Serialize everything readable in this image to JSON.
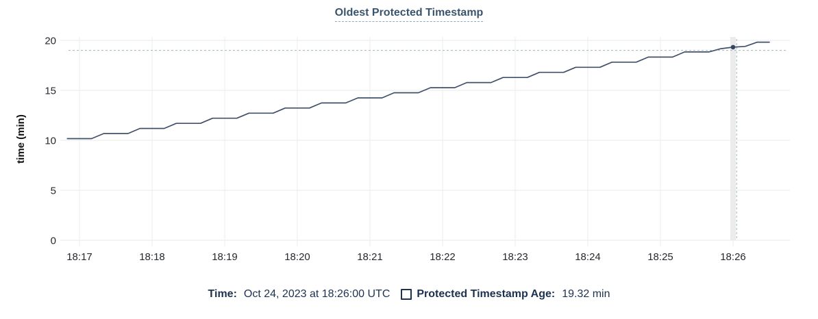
{
  "title": {
    "text": "Oldest Protected Timestamp"
  },
  "legend": {
    "time_label": "Time:",
    "time_value": "Oct 24, 2023 at 18:26:00 UTC",
    "series_label": "Protected Timestamp Age:",
    "series_value": "19.32 min"
  },
  "colors": {
    "title": "#3a546e",
    "title_underline": "#93a8bd",
    "legend_text": "#1c3150",
    "series_line": "#40506a",
    "hover_dot": "#35465e",
    "crosshair": "#9fb4bf",
    "gridline_h": "#e8e8e8",
    "gridline_v": "#eeeeee",
    "hover_band": "#ebebeb",
    "tick_text": "#26282d",
    "axis_title_text": "#111111"
  },
  "chart_data": {
    "type": "line",
    "title": "Oldest Protected Timestamp",
    "xlabel": "",
    "ylabel": "time (min)",
    "ylim": [
      0,
      20
    ],
    "y_ticks": [
      0,
      5,
      10,
      15,
      20
    ],
    "x_ticks": [
      "18:17",
      "18:18",
      "18:19",
      "18:20",
      "18:21",
      "18:22",
      "18:23",
      "18:24",
      "18:25",
      "18:26"
    ],
    "grid": true,
    "legend_position": "bottom",
    "series": [
      {
        "name": "Protected Timestamp Age",
        "unit": "min",
        "points": [
          {
            "t": "18:16:50",
            "v": 10.17
          },
          {
            "t": "18:17:00",
            "v": 10.17
          },
          {
            "t": "18:17:10",
            "v": 10.17
          },
          {
            "t": "18:17:20",
            "v": 10.68
          },
          {
            "t": "18:17:30",
            "v": 10.68
          },
          {
            "t": "18:17:40",
            "v": 10.68
          },
          {
            "t": "18:17:50",
            "v": 11.19
          },
          {
            "t": "18:18:00",
            "v": 11.19
          },
          {
            "t": "18:18:10",
            "v": 11.19
          },
          {
            "t": "18:18:20",
            "v": 11.7
          },
          {
            "t": "18:18:30",
            "v": 11.7
          },
          {
            "t": "18:18:40",
            "v": 11.7
          },
          {
            "t": "18:18:50",
            "v": 12.21
          },
          {
            "t": "18:19:00",
            "v": 12.21
          },
          {
            "t": "18:19:10",
            "v": 12.21
          },
          {
            "t": "18:19:20",
            "v": 12.72
          },
          {
            "t": "18:19:30",
            "v": 12.72
          },
          {
            "t": "18:19:40",
            "v": 12.72
          },
          {
            "t": "18:19:50",
            "v": 13.23
          },
          {
            "t": "18:20:00",
            "v": 13.23
          },
          {
            "t": "18:20:10",
            "v": 13.23
          },
          {
            "t": "18:20:20",
            "v": 13.74
          },
          {
            "t": "18:20:30",
            "v": 13.74
          },
          {
            "t": "18:20:40",
            "v": 13.74
          },
          {
            "t": "18:20:50",
            "v": 14.25
          },
          {
            "t": "18:21:00",
            "v": 14.25
          },
          {
            "t": "18:21:10",
            "v": 14.25
          },
          {
            "t": "18:21:20",
            "v": 14.76
          },
          {
            "t": "18:21:30",
            "v": 14.76
          },
          {
            "t": "18:21:40",
            "v": 14.76
          },
          {
            "t": "18:21:50",
            "v": 15.27
          },
          {
            "t": "18:22:00",
            "v": 15.27
          },
          {
            "t": "18:22:10",
            "v": 15.27
          },
          {
            "t": "18:22:20",
            "v": 15.78
          },
          {
            "t": "18:22:30",
            "v": 15.78
          },
          {
            "t": "18:22:40",
            "v": 15.78
          },
          {
            "t": "18:22:50",
            "v": 16.29
          },
          {
            "t": "18:23:00",
            "v": 16.29
          },
          {
            "t": "18:23:10",
            "v": 16.29
          },
          {
            "t": "18:23:20",
            "v": 16.8
          },
          {
            "t": "18:23:30",
            "v": 16.8
          },
          {
            "t": "18:23:40",
            "v": 16.8
          },
          {
            "t": "18:23:50",
            "v": 17.31
          },
          {
            "t": "18:24:00",
            "v": 17.31
          },
          {
            "t": "18:24:10",
            "v": 17.31
          },
          {
            "t": "18:24:20",
            "v": 17.82
          },
          {
            "t": "18:24:30",
            "v": 17.82
          },
          {
            "t": "18:24:40",
            "v": 17.82
          },
          {
            "t": "18:24:50",
            "v": 18.33
          },
          {
            "t": "18:25:00",
            "v": 18.33
          },
          {
            "t": "18:25:10",
            "v": 18.33
          },
          {
            "t": "18:25:20",
            "v": 18.84
          },
          {
            "t": "18:25:30",
            "v": 18.84
          },
          {
            "t": "18:25:40",
            "v": 18.84
          },
          {
            "t": "18:25:50",
            "v": 19.17
          },
          {
            "t": "18:26:00",
            "v": 19.32
          },
          {
            "t": "18:26:10",
            "v": 19.4
          },
          {
            "t": "18:26:20",
            "v": 19.82
          },
          {
            "t": "18:26:30",
            "v": 19.82
          }
        ]
      }
    ],
    "hover": {
      "point": {
        "t": "18:26:00",
        "v": 19.32
      },
      "crosshair": {
        "t": "18:26:03",
        "v": 19.0
      },
      "snapped_tick": "18:26"
    }
  }
}
